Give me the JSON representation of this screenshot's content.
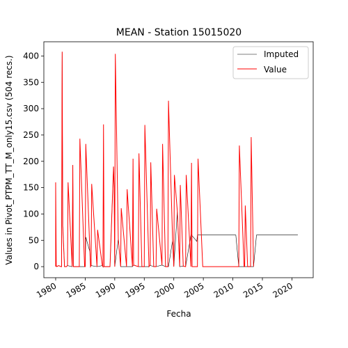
{
  "chart_data": {
    "type": "line",
    "title": "MEAN - Station 15015020",
    "xlabel": "Fecha",
    "ylabel": "Values in Pivot_PTPM_TT_M_only15.csv (504 recs.)",
    "xlim": [
      1978,
      2023.6
    ],
    "ylim": [
      -21,
      427
    ],
    "x_ticks": [
      1980,
      1985,
      1990,
      1995,
      2000,
      2005,
      2010,
      2015,
      2020
    ],
    "x_tick_labels": [
      "1980",
      "1985",
      "1990",
      "1995",
      "2000",
      "2005",
      "2010",
      "2015",
      "2020"
    ],
    "y_ticks": [
      0,
      50,
      100,
      150,
      200,
      250,
      300,
      350,
      400
    ],
    "y_tick_labels": [
      "0",
      "50",
      "100",
      "150",
      "200",
      "250",
      "300",
      "350",
      "400"
    ],
    "legend": {
      "position": "top-right",
      "entries": [
        "Imputed",
        "Value"
      ]
    },
    "series": [
      {
        "name": "Imputed",
        "color": "#000000",
        "x": [
          1980.0,
          1980.1,
          1980.2,
          1980.5,
          1980.9,
          1981.0,
          1981.1,
          1981.2,
          1981.5,
          1981.8,
          1982.0,
          1982.8,
          1982.9,
          1983.0,
          1983.5,
          1984.0,
          1984.9,
          1985.0,
          1985.1,
          1985.8,
          1985.9,
          1986.0,
          1987.0,
          1987.9,
          1988.0,
          1988.2,
          1988.8,
          1989.0,
          1989.2,
          1989.8,
          1989.9,
          1990.0,
          1990.6,
          1991.0,
          1992.0,
          1993.0,
          1993.2,
          1994.0,
          1994.6,
          1994.9,
          1995.0,
          1995.1,
          1995.8,
          1996.0,
          1996.1,
          1996.6,
          1996.9,
          1997.0,
          1998.0,
          1998.6,
          1998.9,
          1999.0,
          1999.1,
          1999.8,
          2000.0,
          2000.6,
          2001.0,
          2001.6,
          2002.0,
          2002.9,
          2003.0,
          2003.9,
          2004.0,
          2004.9,
          2005.0,
          2005.1,
          2009.0,
          2009.9,
          2010.0,
          2010.5,
          2011.0,
          2011.9,
          2012.0,
          2012.5,
          2012.9,
          2013.0,
          2013.5,
          2014.0,
          2014.2,
          2021.0
        ],
        "values": [
          0,
          2,
          0,
          2,
          0,
          0,
          408,
          78,
          0,
          0,
          2,
          0,
          193,
          0,
          0,
          0,
          0,
          0,
          56,
          28,
          0,
          2,
          0,
          2,
          0,
          0,
          0,
          0,
          0,
          190,
          150,
          0,
          53,
          0,
          0,
          0,
          3,
          0,
          0,
          0,
          0,
          0,
          0,
          3,
          2,
          0,
          0,
          0,
          3,
          0,
          0,
          0,
          0,
          50,
          0,
          105,
          0,
          1,
          0,
          60,
          60,
          48,
          60,
          60,
          60,
          60,
          60,
          60,
          60,
          60,
          0,
          0,
          0,
          0,
          0,
          0,
          0,
          60,
          60,
          60
        ]
      },
      {
        "name": "Value",
        "color": "#ff0000",
        "x": [
          1980.0,
          1980.0,
          1980.1,
          1980.2,
          1980.5,
          1980.9,
          1981.0,
          1981.1,
          1981.2,
          1981.5,
          1981.8,
          1982.0,
          1982.1,
          1982.8,
          1982.9,
          1983.0,
          1983.5,
          1984.0,
          1984.1,
          1984.9,
          1985.0,
          1985.1,
          1985.8,
          1985.9,
          1986.0,
          1986.1,
          1987.0,
          1987.1,
          1987.9,
          1988.0,
          1988.1,
          1988.2,
          1988.8,
          1989.0,
          1989.2,
          1989.8,
          1989.9,
          1990.0,
          1990.1,
          1990.6,
          1991.0,
          1991.1,
          1992.0,
          1992.1,
          1993.0,
          1993.1,
          1993.2,
          1994.0,
          1994.1,
          1994.6,
          1994.9,
          1995.0,
          1995.1,
          1995.8,
          1996.0,
          1996.1,
          1996.6,
          1996.9,
          1997.0,
          1997.1,
          1998.0,
          1998.1,
          1998.6,
          1998.9,
          1999.0,
          1999.1,
          1999.8,
          2000.0,
          2000.1,
          2000.6,
          2001.0,
          2001.1,
          2001.6,
          2002.0,
          2002.1,
          2002.9,
          2003.0,
          2003.1,
          2003.9,
          2004.0,
          2004.1,
          2004.9,
          2005.0,
          2005.1,
          2010.0,
          2010.5,
          2011.0,
          2011.1,
          2011.9,
          2012.0,
          2012.1,
          2012.5,
          2012.9,
          2013.0,
          2013.1,
          2013.5
        ],
        "values": [
          0,
          160,
          2,
          0,
          2,
          0,
          0,
          408,
          78,
          0,
          0,
          2,
          160,
          0,
          193,
          0,
          0,
          0,
          243,
          0,
          0,
          233,
          28,
          0,
          2,
          157,
          0,
          70,
          2,
          0,
          270,
          0,
          0,
          0,
          0,
          190,
          150,
          0,
          404,
          53,
          0,
          111,
          0,
          147,
          0,
          205,
          3,
          0,
          215,
          0,
          0,
          0,
          269,
          0,
          3,
          198,
          0,
          0,
          0,
          110,
          3,
          233,
          0,
          0,
          0,
          315,
          50,
          0,
          174,
          105,
          0,
          155,
          1,
          0,
          174,
          0,
          197,
          0,
          0,
          0,
          205,
          0,
          0,
          0,
          0,
          0,
          0,
          230,
          0,
          0,
          116,
          0,
          0,
          0,
          246,
          0
        ]
      }
    ]
  }
}
